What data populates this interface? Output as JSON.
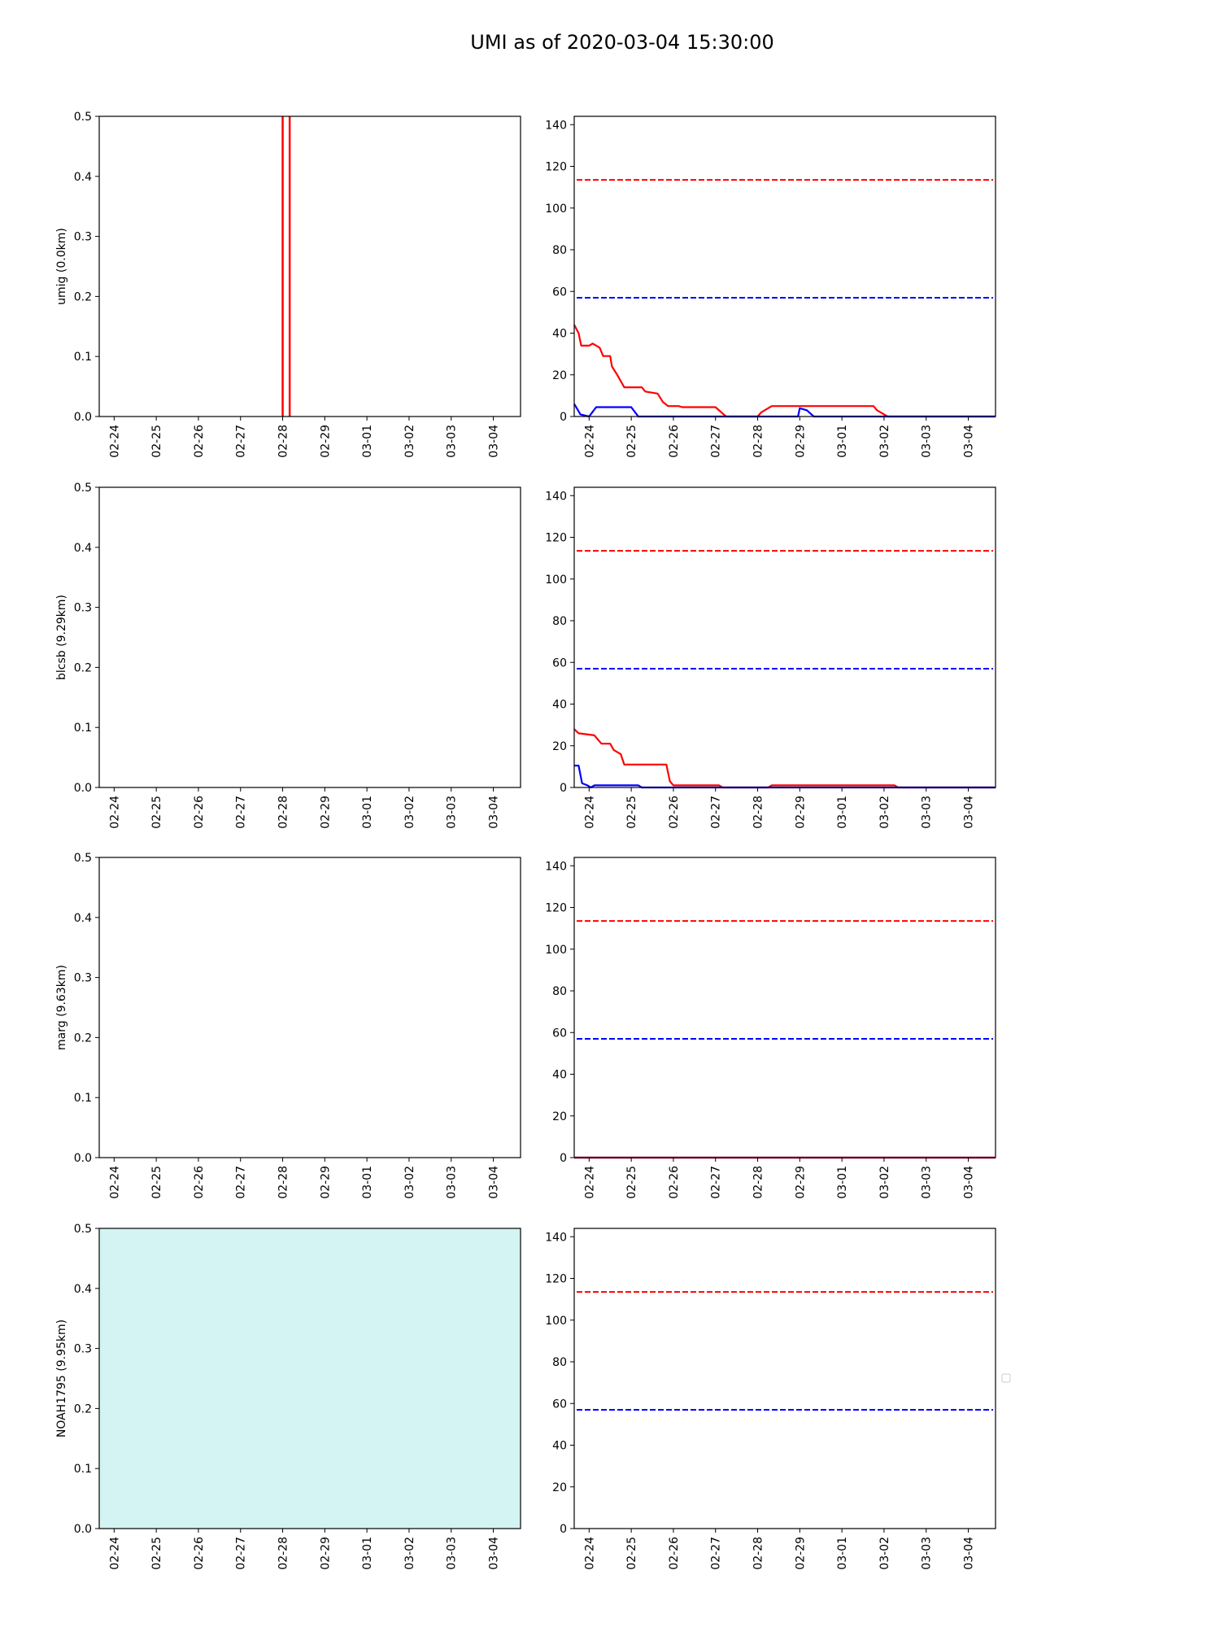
{
  "title": "UMI as of 2020-03-04 15:30:00",
  "chart_data": [
    {
      "type": "line",
      "ylabel": "umig (0.0km)",
      "ylim": [
        0,
        0.5
      ],
      "yticks": [
        "0.0",
        "0.1",
        "0.2",
        "0.3",
        "0.4",
        "0.5"
      ],
      "x_range": [
        "2020-02-23 15:30",
        "2020-03-04 15:30"
      ],
      "xticks": [
        "02-24",
        "02-25",
        "02-26",
        "02-27",
        "02-28",
        "02-29",
        "03-01",
        "03-02",
        "03-03",
        "03-04"
      ],
      "vlines": [
        {
          "x": "2020-02-28 00:00",
          "color": "#ff0000"
        },
        {
          "x": "2020-02-28 04:00",
          "color": "#ff0000"
        }
      ],
      "fill": null
    },
    {
      "type": "line",
      "ylim": [
        0,
        144
      ],
      "yticks": [
        "0",
        "20",
        "40",
        "60",
        "80",
        "100",
        "120",
        "140"
      ],
      "x_range": [
        "2020-02-23 15:30",
        "2020-03-04 15:30"
      ],
      "xticks": [
        "02-24",
        "02-25",
        "02-26",
        "02-27",
        "02-28",
        "02-29",
        "03-01",
        "03-02",
        "03-03",
        "03-04"
      ],
      "hlines": [
        {
          "y": 113.5,
          "color": "#ff0000",
          "style": "dashed"
        },
        {
          "y": 57,
          "color": "#0000ff",
          "style": "dashed"
        }
      ],
      "series": [
        {
          "color": "#ff0000",
          "points": [
            [
              "2020-02-23 15:30",
              44
            ],
            [
              "2020-02-23 18:00",
              40
            ],
            [
              "2020-02-23 19:30",
              34
            ],
            [
              "2020-02-24 00:00",
              34
            ],
            [
              "2020-02-24 02:00",
              35
            ],
            [
              "2020-02-24 06:00",
              33
            ],
            [
              "2020-02-24 08:00",
              29
            ],
            [
              "2020-02-24 12:00",
              29
            ],
            [
              "2020-02-24 13:00",
              24
            ],
            [
              "2020-02-24 16:00",
              20
            ],
            [
              "2020-02-24 20:00",
              14
            ],
            [
              "2020-02-25 06:00",
              14
            ],
            [
              "2020-02-25 08:00",
              12
            ],
            [
              "2020-02-25 15:00",
              11
            ],
            [
              "2020-02-25 18:00",
              7
            ],
            [
              "2020-02-25 21:00",
              5
            ],
            [
              "2020-02-26 03:00",
              5
            ],
            [
              "2020-02-26 05:00",
              4.5
            ],
            [
              "2020-02-27 00:00",
              4.5
            ],
            [
              "2020-02-27 06:00",
              0
            ],
            [
              "2020-02-28 00:00",
              0
            ],
            [
              "2020-02-28 02:00",
              2
            ],
            [
              "2020-02-28 08:00",
              5
            ],
            [
              "2020-03-01 18:00",
              5
            ],
            [
              "2020-03-01 20:00",
              3
            ],
            [
              "2020-03-02 02:00",
              0
            ],
            [
              "2020-03-04 15:30",
              0
            ]
          ]
        },
        {
          "color": "#0000ff",
          "points": [
            [
              "2020-02-23 15:30",
              6
            ],
            [
              "2020-02-23 17:00",
              4
            ],
            [
              "2020-02-23 19:00",
              1
            ],
            [
              "2020-02-24 00:00",
              0
            ],
            [
              "2020-02-24 04:00",
              4.5
            ],
            [
              "2020-02-25 00:00",
              4.5
            ],
            [
              "2020-02-25 04:00",
              0
            ],
            [
              "2020-02-28 23:00",
              0
            ],
            [
              "2020-02-29 00:00",
              4
            ],
            [
              "2020-02-29 04:00",
              3
            ],
            [
              "2020-02-29 08:00",
              0
            ],
            [
              "2020-03-04 15:30",
              0
            ]
          ]
        }
      ]
    },
    {
      "type": "line",
      "ylabel": "blcsb (9.29km)",
      "ylim": [
        0,
        0.5
      ],
      "yticks": [
        "0.0",
        "0.1",
        "0.2",
        "0.3",
        "0.4",
        "0.5"
      ],
      "x_range": [
        "2020-02-23 15:30",
        "2020-03-04 15:30"
      ],
      "xticks": [
        "02-24",
        "02-25",
        "02-26",
        "02-27",
        "02-28",
        "02-29",
        "03-01",
        "03-02",
        "03-03",
        "03-04"
      ],
      "fill": null
    },
    {
      "type": "line",
      "ylim": [
        0,
        144
      ],
      "yticks": [
        "0",
        "20",
        "40",
        "60",
        "80",
        "100",
        "120",
        "140"
      ],
      "x_range": [
        "2020-02-23 15:30",
        "2020-03-04 15:30"
      ],
      "xticks": [
        "02-24",
        "02-25",
        "02-26",
        "02-27",
        "02-28",
        "02-29",
        "03-01",
        "03-02",
        "03-03",
        "03-04"
      ],
      "hlines": [
        {
          "y": 113.5,
          "color": "#ff0000",
          "style": "dashed"
        },
        {
          "y": 57,
          "color": "#0000ff",
          "style": "dashed"
        }
      ],
      "series": [
        {
          "color": "#ff0000",
          "points": [
            [
              "2020-02-23 15:30",
              28
            ],
            [
              "2020-02-23 18:00",
              26
            ],
            [
              "2020-02-24 03:00",
              25
            ],
            [
              "2020-02-24 05:00",
              23
            ],
            [
              "2020-02-24 07:00",
              21
            ],
            [
              "2020-02-24 12:00",
              21
            ],
            [
              "2020-02-24 14:00",
              18
            ],
            [
              "2020-02-24 18:00",
              16
            ],
            [
              "2020-02-24 20:00",
              11
            ],
            [
              "2020-02-25 20:00",
              11
            ],
            [
              "2020-02-25 22:00",
              3
            ],
            [
              "2020-02-26 00:00",
              1
            ],
            [
              "2020-02-27 02:00",
              1
            ],
            [
              "2020-02-27 04:00",
              0
            ],
            [
              "2020-02-28 06:00",
              0
            ],
            [
              "2020-02-28 08:00",
              1
            ],
            [
              "2020-03-02 06:00",
              1
            ],
            [
              "2020-03-02 08:00",
              0
            ],
            [
              "2020-03-04 15:30",
              0
            ]
          ]
        },
        {
          "color": "#0000ff",
          "points": [
            [
              "2020-02-23 15:30",
              10.5
            ],
            [
              "2020-02-23 18:00",
              10.5
            ],
            [
              "2020-02-23 20:00",
              2
            ],
            [
              "2020-02-23 23:00",
              1
            ],
            [
              "2020-02-24 01:00",
              0
            ],
            [
              "2020-02-24 03:00",
              1
            ],
            [
              "2020-02-25 04:00",
              1
            ],
            [
              "2020-02-25 06:00",
              0
            ],
            [
              "2020-03-04 15:30",
              0
            ]
          ]
        }
      ]
    },
    {
      "type": "line",
      "ylabel": "marg (9.63km)",
      "ylim": [
        0,
        0.5
      ],
      "yticks": [
        "0.0",
        "0.1",
        "0.2",
        "0.3",
        "0.4",
        "0.5"
      ],
      "x_range": [
        "2020-02-23 15:30",
        "2020-03-04 15:30"
      ],
      "xticks": [
        "02-24",
        "02-25",
        "02-26",
        "02-27",
        "02-28",
        "02-29",
        "03-01",
        "03-02",
        "03-03",
        "03-04"
      ],
      "fill": null
    },
    {
      "type": "line",
      "ylim": [
        0,
        144
      ],
      "yticks": [
        "0",
        "20",
        "40",
        "60",
        "80",
        "100",
        "120",
        "140"
      ],
      "x_range": [
        "2020-02-23 15:30",
        "2020-03-04 15:30"
      ],
      "xticks": [
        "02-24",
        "02-25",
        "02-26",
        "02-27",
        "02-28",
        "02-29",
        "03-01",
        "03-02",
        "03-03",
        "03-04"
      ],
      "hlines": [
        {
          "y": 113.5,
          "color": "#ff0000",
          "style": "dashed"
        },
        {
          "y": 57,
          "color": "#0000ff",
          "style": "dashed"
        }
      ],
      "series": [
        {
          "color": "#0000ff",
          "points": [
            [
              "2020-02-23 15:30",
              0
            ],
            [
              "2020-03-04 15:30",
              0
            ]
          ]
        },
        {
          "color": "#ff0000",
          "points": [
            [
              "2020-02-23 15:30",
              0
            ],
            [
              "2020-03-04 15:30",
              0
            ]
          ]
        }
      ]
    },
    {
      "type": "line",
      "ylabel": "NOAH1795 (9.95km)",
      "ylim": [
        0,
        0.5
      ],
      "yticks": [
        "0.0",
        "0.1",
        "0.2",
        "0.3",
        "0.4",
        "0.5"
      ],
      "x_range": [
        "2020-02-23 15:30",
        "2020-03-04 15:30"
      ],
      "xticks": [
        "02-24",
        "02-25",
        "02-26",
        "02-27",
        "02-28",
        "02-29",
        "03-01",
        "03-02",
        "03-03",
        "03-04"
      ],
      "fill": "#d4f4f3"
    },
    {
      "type": "line",
      "ylim": [
        0,
        144
      ],
      "yticks": [
        "0",
        "20",
        "40",
        "60",
        "80",
        "100",
        "120",
        "140"
      ],
      "x_range": [
        "2020-02-23 15:30",
        "2020-03-04 15:30"
      ],
      "xticks": [
        "02-24",
        "02-25",
        "02-26",
        "02-27",
        "02-28",
        "02-29",
        "03-01",
        "03-02",
        "03-03",
        "03-04"
      ],
      "hlines": [
        {
          "y": 113.5,
          "color": "#ff0000",
          "style": "dashed"
        },
        {
          "y": 57,
          "color": "#0000ff",
          "style": "dashed"
        }
      ],
      "series": [],
      "legend": "empty-box-right"
    }
  ]
}
